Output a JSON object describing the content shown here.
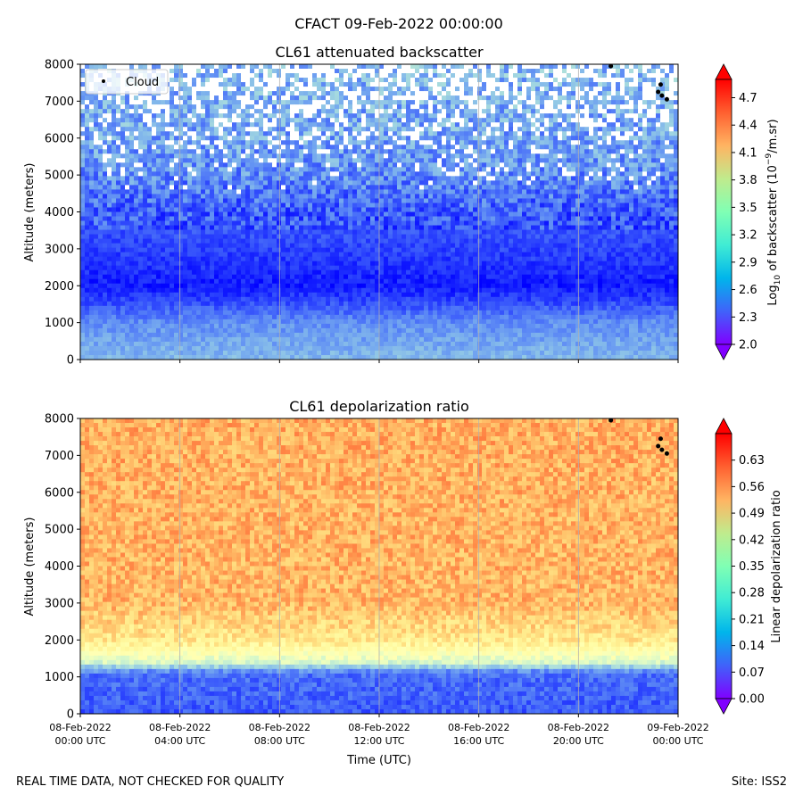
{
  "suptitle": "CFACT 09-Feb-2022 00:00:00",
  "footer_left": "REAL TIME DATA, NOT CHECKED FOR QUALITY",
  "footer_right": "Site: ISS2",
  "chart_data": [
    {
      "type": "heatmap",
      "title": "CL61 attenuated backscatter",
      "ylabel": "Altitude (meters)",
      "ylim": [
        0,
        8000
      ],
      "yticks": [
        "0",
        "1000",
        "2000",
        "3000",
        "4000",
        "5000",
        "6000",
        "7000",
        "8000"
      ],
      "colorbar_label_base": "Log",
      "colorbar_label_sub": "10",
      "colorbar_label_rest": " of backscatter (10",
      "colorbar_label_sup": "−9",
      "colorbar_label_end": "/m.sr)",
      "colorbar_range": [
        2.0,
        4.9
      ],
      "colorbar_ticks": [
        "2.0",
        "2.3",
        "2.6",
        "2.9",
        "3.2",
        "3.5",
        "3.8",
        "4.1",
        "4.4",
        "4.7"
      ],
      "colormap": "rainbow",
      "legend": [
        {
          "label": "Cloud",
          "color": "#000000",
          "marker": "dot"
        }
      ],
      "legend_position": "top-left",
      "profile": [
        {
          "altitude": 0,
          "value": 2.75
        },
        {
          "altitude": 1000,
          "value": 2.55
        },
        {
          "altitude": 1600,
          "value": 2.25
        },
        {
          "altitude": 2000,
          "value": 2.1
        },
        {
          "altitude": 3000,
          "value": 2.25
        },
        {
          "altitude": 4000,
          "value": 2.35
        },
        {
          "altitude": 5000,
          "value": 2.55
        },
        {
          "altitude": 6000,
          "value": 2.65
        },
        {
          "altitude": 8000,
          "value": 2.75
        }
      ],
      "cloud_points": [
        {
          "time_hours": 21.3,
          "altitude": 7950
        },
        {
          "time_hours": 23.3,
          "altitude": 7450
        },
        {
          "time_hours": 23.2,
          "altitude": 7250
        },
        {
          "time_hours": 23.35,
          "altitude": 7150
        },
        {
          "time_hours": 23.55,
          "altitude": 7050
        }
      ]
    },
    {
      "type": "heatmap",
      "title": "CL61 depolarization ratio",
      "ylabel": "Altitude (meters)",
      "xlabel": "Time (UTC)",
      "ylim": [
        0,
        8000
      ],
      "yticks": [
        "0",
        "1000",
        "2000",
        "3000",
        "4000",
        "5000",
        "6000",
        "7000",
        "8000"
      ],
      "colorbar_label": "Linear depolarization ratio",
      "colorbar_range": [
        0.0,
        0.7
      ],
      "colorbar_ticks": [
        "0.00",
        "0.07",
        "0.14",
        "0.21",
        "0.28",
        "0.35",
        "0.42",
        "0.49",
        "0.56",
        "0.63"
      ],
      "colormap": "rainbow",
      "profile": [
        {
          "altitude": 0,
          "value": 0.08
        },
        {
          "altitude": 1100,
          "value": 0.1
        },
        {
          "altitude": 1400,
          "value": 0.3
        },
        {
          "altitude": 2000,
          "value": 0.44
        },
        {
          "altitude": 3000,
          "value": 0.52
        },
        {
          "altitude": 8000,
          "value": 0.53
        }
      ],
      "cloud_points": [
        {
          "time_hours": 21.3,
          "altitude": 7950
        },
        {
          "time_hours": 23.3,
          "altitude": 7450
        },
        {
          "time_hours": 23.2,
          "altitude": 7250
        },
        {
          "time_hours": 23.35,
          "altitude": 7150
        },
        {
          "time_hours": 23.55,
          "altitude": 7050
        }
      ]
    }
  ],
  "x_axis": {
    "range_hours": [
      0,
      24
    ],
    "ticks": [
      {
        "hours": 0,
        "line1": "08-Feb-2022",
        "line2": "00:00 UTC"
      },
      {
        "hours": 4,
        "line1": "08-Feb-2022",
        "line2": "04:00 UTC"
      },
      {
        "hours": 8,
        "line1": "08-Feb-2022",
        "line2": "08:00 UTC"
      },
      {
        "hours": 12,
        "line1": "08-Feb-2022",
        "line2": "12:00 UTC"
      },
      {
        "hours": 16,
        "line1": "08-Feb-2022",
        "line2": "16:00 UTC"
      },
      {
        "hours": 20,
        "line1": "08-Feb-2022",
        "line2": "20:00 UTC"
      },
      {
        "hours": 24,
        "line1": "09-Feb-2022",
        "line2": "00:00 UTC"
      }
    ]
  }
}
